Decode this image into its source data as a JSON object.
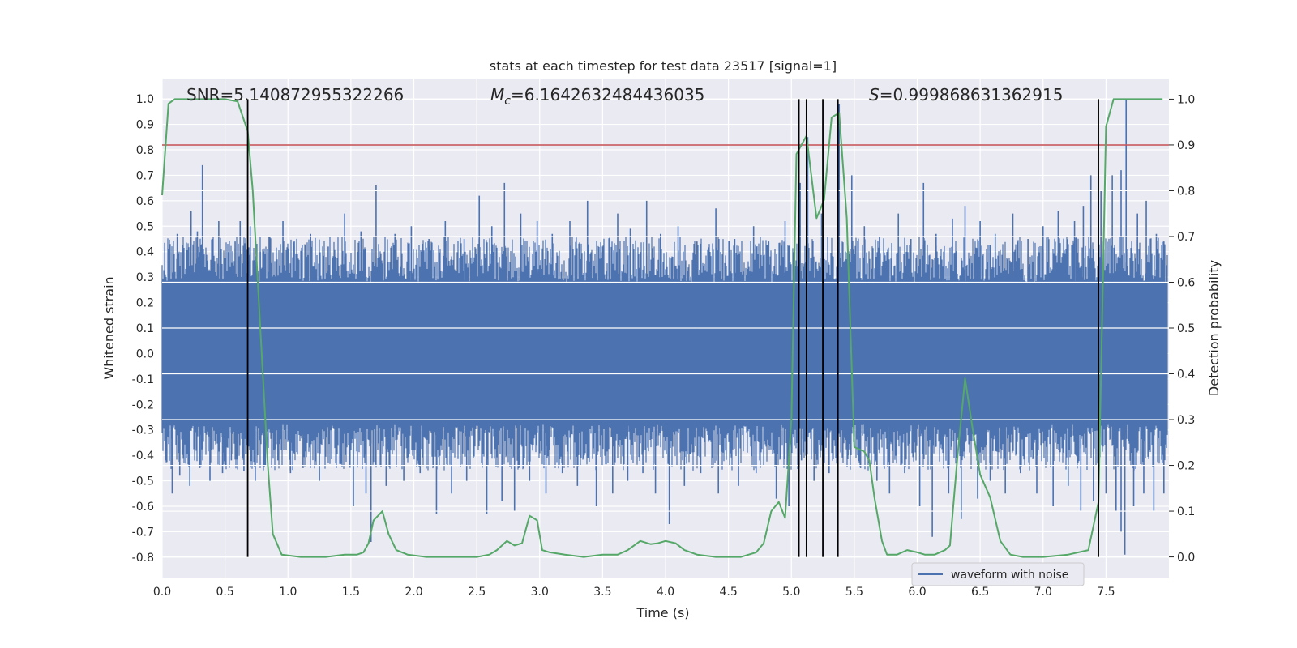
{
  "chart_data": {
    "type": "line",
    "title": "stats at each timestep for test data 23517 [signal=1]",
    "xlabel": "Time (s)",
    "ylabel": "Whitened strain",
    "y2label": "Detection probability",
    "xlim": [
      0.0,
      8.0
    ],
    "ylim": [
      -0.88,
      1.08
    ],
    "y2lim": [
      -0.045,
      1.045
    ],
    "xticks": [
      "0.0",
      "0.5",
      "1.0",
      "1.5",
      "2.0",
      "2.5",
      "3.0",
      "3.5",
      "4.0",
      "4.5",
      "5.0",
      "5.5",
      "6.0",
      "6.5",
      "7.0",
      "7.5"
    ],
    "yticks": [
      "-0.8",
      "-0.7",
      "-0.6",
      "-0.5",
      "-0.4",
      "-0.3",
      "-0.2",
      "-0.1",
      "0.0",
      "0.1",
      "0.2",
      "0.3",
      "0.4",
      "0.5",
      "0.6",
      "0.7",
      "0.8",
      "0.9",
      "1.0"
    ],
    "y2ticks": [
      "0.0",
      "0.1",
      "0.2",
      "0.3",
      "0.4",
      "0.5",
      "0.6",
      "0.7",
      "0.8",
      "0.9",
      "1.0"
    ],
    "grid": true,
    "annotations": {
      "snr": "SNR=5.140872955322266",
      "mc_symbol": "M",
      "mc_subscript": "c",
      "mc_value": "=6.1642632484436035",
      "s_symbol": "S",
      "s_value": "=0.999868631362915"
    },
    "threshold": {
      "value": 0.9,
      "axis": "right",
      "color": "#c44e52"
    },
    "vlines": [
      0.68,
      5.06,
      5.12,
      5.25,
      5.37,
      7.44
    ],
    "series": [
      {
        "name": "waveform with noise",
        "axis": "left",
        "color": "#4c72b0",
        "band": {
          "lower": -0.28,
          "upper": 0.28
        },
        "spikes_up": [
          {
            "x": 0.05,
            "y": 0.41
          },
          {
            "x": 0.12,
            "y": 0.47
          },
          {
            "x": 0.2,
            "y": 0.4
          },
          {
            "x": 0.23,
            "y": 0.56
          },
          {
            "x": 0.28,
            "y": 0.48
          },
          {
            "x": 0.32,
            "y": 0.74
          },
          {
            "x": 0.4,
            "y": 0.45
          },
          {
            "x": 0.45,
            "y": 0.52
          },
          {
            "x": 0.58,
            "y": 0.44
          },
          {
            "x": 0.62,
            "y": 0.52
          },
          {
            "x": 0.7,
            "y": 0.5
          },
          {
            "x": 0.78,
            "y": 0.4
          },
          {
            "x": 0.85,
            "y": 0.46
          },
          {
            "x": 0.96,
            "y": 0.52
          },
          {
            "x": 1.05,
            "y": 0.44
          },
          {
            "x": 1.18,
            "y": 0.47
          },
          {
            "x": 1.32,
            "y": 0.42
          },
          {
            "x": 1.45,
            "y": 0.55
          },
          {
            "x": 1.58,
            "y": 0.48
          },
          {
            "x": 1.7,
            "y": 0.66
          },
          {
            "x": 1.85,
            "y": 0.47
          },
          {
            "x": 1.98,
            "y": 0.5
          },
          {
            "x": 2.12,
            "y": 0.45
          },
          {
            "x": 2.25,
            "y": 0.52
          },
          {
            "x": 2.4,
            "y": 0.45
          },
          {
            "x": 2.52,
            "y": 0.62
          },
          {
            "x": 2.62,
            "y": 0.5
          },
          {
            "x": 2.72,
            "y": 0.67
          },
          {
            "x": 2.85,
            "y": 0.55
          },
          {
            "x": 2.98,
            "y": 0.52
          },
          {
            "x": 3.1,
            "y": 0.47
          },
          {
            "x": 3.24,
            "y": 0.52
          },
          {
            "x": 3.38,
            "y": 0.6
          },
          {
            "x": 3.5,
            "y": 0.42
          },
          {
            "x": 3.62,
            "y": 0.55
          },
          {
            "x": 3.72,
            "y": 0.49
          },
          {
            "x": 3.85,
            "y": 0.6
          },
          {
            "x": 3.96,
            "y": 0.47
          },
          {
            "x": 4.1,
            "y": 0.5
          },
          {
            "x": 4.25,
            "y": 0.44
          },
          {
            "x": 4.4,
            "y": 0.57
          },
          {
            "x": 4.55,
            "y": 0.45
          },
          {
            "x": 4.7,
            "y": 0.5
          },
          {
            "x": 4.82,
            "y": 0.44
          },
          {
            "x": 4.95,
            "y": 0.52
          },
          {
            "x": 5.07,
            "y": 0.67
          },
          {
            "x": 5.13,
            "y": 0.85
          },
          {
            "x": 5.24,
            "y": 0.55
          },
          {
            "x": 5.38,
            "y": 0.98
          },
          {
            "x": 5.48,
            "y": 0.7
          },
          {
            "x": 5.58,
            "y": 0.5
          },
          {
            "x": 5.7,
            "y": 0.46
          },
          {
            "x": 5.85,
            "y": 0.55
          },
          {
            "x": 5.95,
            "y": 0.45
          },
          {
            "x": 6.05,
            "y": 0.67
          },
          {
            "x": 6.15,
            "y": 0.47
          },
          {
            "x": 6.28,
            "y": 0.53
          },
          {
            "x": 6.38,
            "y": 0.58
          },
          {
            "x": 6.5,
            "y": 0.52
          },
          {
            "x": 6.62,
            "y": 0.47
          },
          {
            "x": 6.76,
            "y": 0.55
          },
          {
            "x": 6.88,
            "y": 0.45
          },
          {
            "x": 7.0,
            "y": 0.5
          },
          {
            "x": 7.12,
            "y": 0.56
          },
          {
            "x": 7.25,
            "y": 0.52
          },
          {
            "x": 7.32,
            "y": 0.58
          },
          {
            "x": 7.38,
            "y": 0.7
          },
          {
            "x": 7.46,
            "y": 0.64
          },
          {
            "x": 7.55,
            "y": 0.7
          },
          {
            "x": 7.62,
            "y": 0.72
          },
          {
            "x": 7.66,
            "y": 1.0
          },
          {
            "x": 7.75,
            "y": 0.55
          },
          {
            "x": 7.82,
            "y": 0.6
          },
          {
            "x": 7.9,
            "y": 0.47
          },
          {
            "x": 7.96,
            "y": 0.44
          }
        ],
        "spikes_down": [
          {
            "x": 0.03,
            "y": -0.42
          },
          {
            "x": 0.08,
            "y": -0.55
          },
          {
            "x": 0.14,
            "y": -0.48
          },
          {
            "x": 0.22,
            "y": -0.52
          },
          {
            "x": 0.3,
            "y": -0.45
          },
          {
            "x": 0.38,
            "y": -0.5
          },
          {
            "x": 0.48,
            "y": -0.47
          },
          {
            "x": 0.55,
            "y": -0.42
          },
          {
            "x": 0.65,
            "y": -0.46
          },
          {
            "x": 0.74,
            "y": -0.5
          },
          {
            "x": 0.82,
            "y": -0.44
          },
          {
            "x": 0.92,
            "y": -0.42
          },
          {
            "x": 1.02,
            "y": -0.47
          },
          {
            "x": 1.12,
            "y": -0.45
          },
          {
            "x": 1.25,
            "y": -0.5
          },
          {
            "x": 1.38,
            "y": -0.43
          },
          {
            "x": 1.52,
            "y": -0.6
          },
          {
            "x": 1.62,
            "y": -0.55
          },
          {
            "x": 1.66,
            "y": -0.74
          },
          {
            "x": 1.78,
            "y": -0.52
          },
          {
            "x": 1.92,
            "y": -0.5
          },
          {
            "x": 2.05,
            "y": -0.47
          },
          {
            "x": 2.18,
            "y": -0.63
          },
          {
            "x": 2.3,
            "y": -0.55
          },
          {
            "x": 2.42,
            "y": -0.5
          },
          {
            "x": 2.58,
            "y": -0.63
          },
          {
            "x": 2.7,
            "y": -0.58
          },
          {
            "x": 2.8,
            "y": -0.62
          },
          {
            "x": 2.92,
            "y": -0.5
          },
          {
            "x": 3.05,
            "y": -0.55
          },
          {
            "x": 3.18,
            "y": -0.47
          },
          {
            "x": 3.3,
            "y": -0.52
          },
          {
            "x": 3.45,
            "y": -0.6
          },
          {
            "x": 3.58,
            "y": -0.55
          },
          {
            "x": 3.7,
            "y": -0.5
          },
          {
            "x": 3.82,
            "y": -0.47
          },
          {
            "x": 3.92,
            "y": -0.55
          },
          {
            "x": 4.03,
            "y": -0.67
          },
          {
            "x": 4.15,
            "y": -0.52
          },
          {
            "x": 4.28,
            "y": -0.47
          },
          {
            "x": 4.42,
            "y": -0.55
          },
          {
            "x": 4.58,
            "y": -0.52
          },
          {
            "x": 4.72,
            "y": -0.47
          },
          {
            "x": 4.88,
            "y": -0.57
          },
          {
            "x": 4.98,
            "y": -0.6
          },
          {
            "x": 5.08,
            "y": -0.42
          },
          {
            "x": 5.18,
            "y": -0.5
          },
          {
            "x": 5.3,
            "y": -0.47
          },
          {
            "x": 5.45,
            "y": -0.4
          },
          {
            "x": 5.55,
            "y": -0.45
          },
          {
            "x": 5.68,
            "y": -0.5
          },
          {
            "x": 5.78,
            "y": -0.55
          },
          {
            "x": 5.9,
            "y": -0.47
          },
          {
            "x": 6.02,
            "y": -0.6
          },
          {
            "x": 6.12,
            "y": -0.72
          },
          {
            "x": 6.25,
            "y": -0.55
          },
          {
            "x": 6.35,
            "y": -0.65
          },
          {
            "x": 6.48,
            "y": -0.57
          },
          {
            "x": 6.58,
            "y": -0.5
          },
          {
            "x": 6.7,
            "y": -0.55
          },
          {
            "x": 6.82,
            "y": -0.47
          },
          {
            "x": 6.95,
            "y": -0.55
          },
          {
            "x": 7.08,
            "y": -0.6
          },
          {
            "x": 7.2,
            "y": -0.52
          },
          {
            "x": 7.3,
            "y": -0.62
          },
          {
            "x": 7.4,
            "y": -0.58
          },
          {
            "x": 7.5,
            "y": -0.55
          },
          {
            "x": 7.58,
            "y": -0.62
          },
          {
            "x": 7.62,
            "y": -0.7
          },
          {
            "x": 7.65,
            "y": -0.79
          },
          {
            "x": 7.72,
            "y": -0.6
          },
          {
            "x": 7.8,
            "y": -0.55
          },
          {
            "x": 7.88,
            "y": -0.62
          },
          {
            "x": 7.96,
            "y": -0.55
          }
        ]
      },
      {
        "name": "",
        "axis": "right",
        "color": "#55a868",
        "points": [
          [
            0.0,
            0.79
          ],
          [
            0.05,
            0.99
          ],
          [
            0.1,
            1.0
          ],
          [
            0.2,
            1.0
          ],
          [
            0.3,
            1.0
          ],
          [
            0.4,
            1.0
          ],
          [
            0.5,
            1.0
          ],
          [
            0.6,
            0.995
          ],
          [
            0.68,
            0.93
          ],
          [
            0.72,
            0.8
          ],
          [
            0.76,
            0.6
          ],
          [
            0.8,
            0.4
          ],
          [
            0.84,
            0.2
          ],
          [
            0.88,
            0.05
          ],
          [
            0.95,
            0.005
          ],
          [
            1.1,
            0.0
          ],
          [
            1.3,
            0.0
          ],
          [
            1.45,
            0.005
          ],
          [
            1.55,
            0.005
          ],
          [
            1.6,
            0.01
          ],
          [
            1.64,
            0.03
          ],
          [
            1.68,
            0.08
          ],
          [
            1.75,
            0.1
          ],
          [
            1.8,
            0.05
          ],
          [
            1.86,
            0.015
          ],
          [
            1.95,
            0.005
          ],
          [
            2.1,
            0.0
          ],
          [
            2.3,
            0.0
          ],
          [
            2.5,
            0.0
          ],
          [
            2.6,
            0.005
          ],
          [
            2.66,
            0.015
          ],
          [
            2.74,
            0.035
          ],
          [
            2.8,
            0.025
          ],
          [
            2.86,
            0.03
          ],
          [
            2.92,
            0.09
          ],
          [
            2.98,
            0.08
          ],
          [
            3.02,
            0.015
          ],
          [
            3.08,
            0.01
          ],
          [
            3.2,
            0.005
          ],
          [
            3.35,
            0.0
          ],
          [
            3.5,
            0.005
          ],
          [
            3.62,
            0.005
          ],
          [
            3.7,
            0.015
          ],
          [
            3.8,
            0.035
          ],
          [
            3.88,
            0.028
          ],
          [
            3.94,
            0.03
          ],
          [
            4.0,
            0.035
          ],
          [
            4.08,
            0.03
          ],
          [
            4.15,
            0.015
          ],
          [
            4.25,
            0.005
          ],
          [
            4.4,
            0.0
          ],
          [
            4.6,
            0.0
          ],
          [
            4.72,
            0.01
          ],
          [
            4.78,
            0.03
          ],
          [
            4.84,
            0.1
          ],
          [
            4.9,
            0.12
          ],
          [
            4.95,
            0.085
          ],
          [
            5.0,
            0.3
          ],
          [
            5.04,
            0.88
          ],
          [
            5.12,
            0.92
          ],
          [
            5.2,
            0.74
          ],
          [
            5.26,
            0.78
          ],
          [
            5.32,
            0.96
          ],
          [
            5.38,
            0.97
          ],
          [
            5.44,
            0.74
          ],
          [
            5.5,
            0.24
          ],
          [
            5.58,
            0.23
          ],
          [
            5.62,
            0.21
          ],
          [
            5.66,
            0.13
          ],
          [
            5.72,
            0.035
          ],
          [
            5.76,
            0.005
          ],
          [
            5.84,
            0.005
          ],
          [
            5.92,
            0.015
          ],
          [
            6.0,
            0.01
          ],
          [
            6.06,
            0.005
          ],
          [
            6.14,
            0.005
          ],
          [
            6.22,
            0.015
          ],
          [
            6.26,
            0.025
          ],
          [
            6.32,
            0.22
          ],
          [
            6.38,
            0.39
          ],
          [
            6.44,
            0.28
          ],
          [
            6.5,
            0.18
          ],
          [
            6.58,
            0.13
          ],
          [
            6.66,
            0.035
          ],
          [
            6.74,
            0.005
          ],
          [
            6.84,
            0.0
          ],
          [
            7.0,
            0.0
          ],
          [
            7.2,
            0.005
          ],
          [
            7.36,
            0.015
          ],
          [
            7.44,
            0.12
          ],
          [
            7.5,
            0.94
          ],
          [
            7.56,
            1.0
          ],
          [
            7.62,
            1.0
          ],
          [
            7.75,
            1.0
          ],
          [
            7.95,
            1.0
          ]
        ]
      }
    ],
    "legend": {
      "entries": [
        "waveform with noise"
      ],
      "position": "lower-right"
    }
  }
}
